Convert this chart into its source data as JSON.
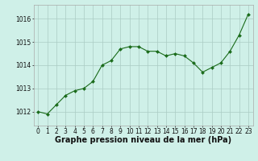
{
  "x": [
    0,
    1,
    2,
    3,
    4,
    5,
    6,
    7,
    8,
    9,
    10,
    11,
    12,
    13,
    14,
    15,
    16,
    17,
    18,
    19,
    20,
    21,
    22,
    23
  ],
  "y": [
    1012.0,
    1011.9,
    1012.3,
    1012.7,
    1012.9,
    1013.0,
    1013.3,
    1014.0,
    1014.2,
    1014.7,
    1014.8,
    1014.8,
    1014.6,
    1014.6,
    1014.4,
    1014.5,
    1014.4,
    1014.1,
    1013.7,
    1013.9,
    1014.1,
    1014.6,
    1015.3,
    1016.2
  ],
  "line_color": "#1a6b1a",
  "marker": "D",
  "marker_size": 2.0,
  "bg_color": "#cff0e8",
  "grid_color": "#aaccc4",
  "xlabel": "Graphe pression niveau de la mer (hPa)",
  "xlabel_fontsize": 7.0,
  "ylabel_ticks": [
    1012,
    1013,
    1014,
    1015,
    1016
  ],
  "xlim": [
    -0.5,
    23.5
  ],
  "ylim": [
    1011.4,
    1016.6
  ],
  "tick_fontsize": 5.5,
  "spine_color": "#aaaaaa"
}
